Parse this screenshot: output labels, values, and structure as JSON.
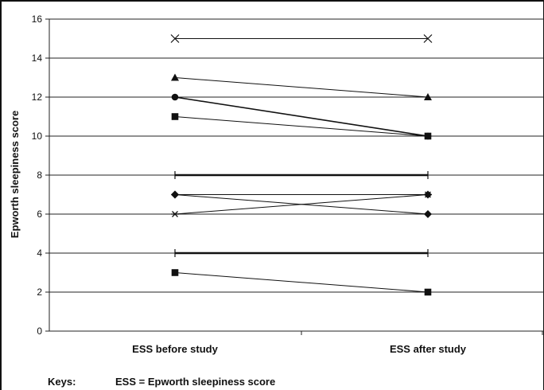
{
  "chart_data": {
    "type": "line",
    "categories": [
      "ESS before study",
      "ESS after study"
    ],
    "ylabel": "Epworth sleepiness score",
    "xlabel": "",
    "ylim": [
      0,
      16
    ],
    "yticks": [
      0,
      2,
      4,
      6,
      8,
      10,
      12,
      14,
      16
    ],
    "grid": true,
    "series": [
      {
        "marker": "x",
        "values": [
          15,
          15
        ],
        "line_weight": "thin"
      },
      {
        "marker": "triangle",
        "values": [
          13,
          12
        ],
        "line_weight": "thin"
      },
      {
        "marker": "circle",
        "values": [
          12,
          10
        ],
        "line_weight": "medium"
      },
      {
        "marker": "square",
        "values": [
          11,
          10
        ],
        "line_weight": "thin"
      },
      {
        "marker": "none",
        "values": [
          8,
          8
        ],
        "line_weight": "thick"
      },
      {
        "marker": "diamond",
        "values": [
          7,
          6
        ],
        "line_weight": "thin"
      },
      {
        "marker": "asterisk",
        "values": [
          6,
          7
        ],
        "line_weight": "thin"
      },
      {
        "marker": "diamond",
        "values": [
          7,
          7
        ],
        "line_weight": "thin"
      },
      {
        "marker": "none",
        "values": [
          4,
          4
        ],
        "line_weight": "thick"
      },
      {
        "marker": "square",
        "values": [
          3,
          2
        ],
        "line_weight": "thin"
      }
    ]
  },
  "keys": {
    "title": "Keys:",
    "text": "ESS = Epworth sleepiness score"
  }
}
